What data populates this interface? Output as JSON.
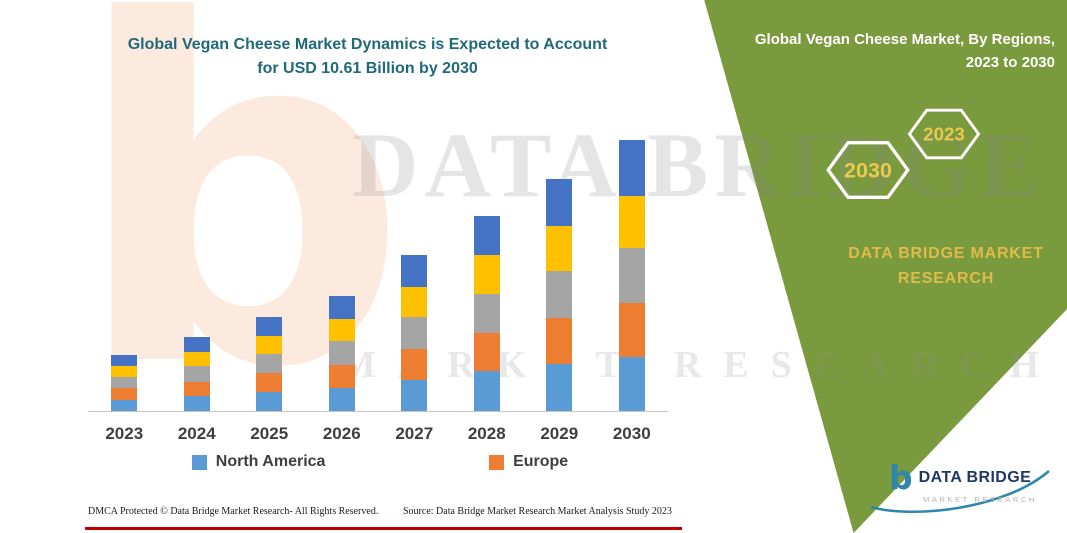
{
  "page": {
    "main_title_line1": "Global Vegan Cheese Market Dynamics is Expected to Account",
    "main_title_line2": "for USD 10.61 Billion by 2030"
  },
  "panel": {
    "title_line1": "Global Vegan Cheese Market, By Regions,",
    "title_line2": "2023 to 2030",
    "hexagons": [
      {
        "label": "2030"
      },
      {
        "label": "2023"
      }
    ],
    "brand_line1": "DATA BRIDGE MARKET",
    "brand_line2": "RESEARCH"
  },
  "watermark": {
    "big_letter": "b",
    "line1": "DATA BRIDGE",
    "line2": "MARKET RESEARCH"
  },
  "chart_data": {
    "type": "bar",
    "stacked": true,
    "title": "Global Vegan Cheese Market Dynamics is Expected to Account for USD 10.61 Billion by 2030",
    "xlabel": "",
    "ylabel": "",
    "unit": "USD billion (estimated from bar heights; 2030 total labeled 10.61)",
    "categories": [
      "2023",
      "2024",
      "2025",
      "2026",
      "2027",
      "2028",
      "2029",
      "2030"
    ],
    "series": [
      {
        "name": "North America",
        "color": "#5B9BD5",
        "values": [
          0.45,
          0.6,
          0.75,
          0.9,
          1.2,
          1.55,
          1.85,
          2.1
        ]
      },
      {
        "name": "Europe",
        "color": "#ED7D31",
        "values": [
          0.45,
          0.55,
          0.75,
          0.9,
          1.25,
          1.5,
          1.8,
          2.15
        ]
      },
      {
        "name": "",
        "color": "#A5A5A5",
        "values": [
          0.45,
          0.6,
          0.75,
          0.95,
          1.25,
          1.55,
          1.85,
          2.15
        ]
      },
      {
        "name": "",
        "color": "#FFC000",
        "values": [
          0.4,
          0.55,
          0.7,
          0.85,
          1.15,
          1.5,
          1.75,
          2.05
        ]
      },
      {
        "name": "",
        "color": "#4472C4",
        "values": [
          0.45,
          0.6,
          0.75,
          0.9,
          1.25,
          1.55,
          1.85,
          2.16
        ]
      }
    ],
    "totals": [
      2.2,
      2.9,
      3.7,
      4.5,
      6.1,
      7.65,
      9.1,
      10.61
    ],
    "legend_entries": [
      "North America",
      "Europe"
    ],
    "legend_position": "bottom",
    "grid": false,
    "y_axis_visible": false,
    "ylim": [
      0,
      11
    ],
    "note": "Three upper segments (gray, yellow, blue) have no legend labels visible in the image."
  },
  "footer": {
    "dmca": "DMCA Protected © Data Bridge Market Research-  All Rights Reserved.",
    "source": "Source: Data Bridge Market Research  Market Analysis Study 2023"
  },
  "logo": {
    "icon_letter": "b",
    "name": "DATA BRIDGE",
    "subtitle": "MARKET RESEARCH"
  },
  "colors": {
    "panel_green": "#7a9a3e",
    "title_teal": "#20697b",
    "accent_red": "#c00000",
    "hex_text_yellow": "#eac94f",
    "brand_gold": "#dfbb4a",
    "north_america_blue": "#5B9BD5",
    "europe_orange": "#ED7D31",
    "gray_segment": "#A5A5A5",
    "yellow_segment": "#FFC000",
    "blue_segment": "#4472C4"
  }
}
